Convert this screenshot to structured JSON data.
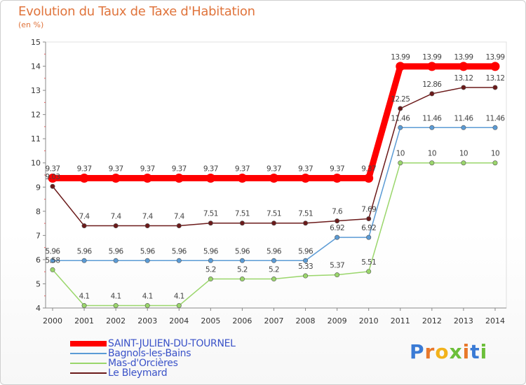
{
  "chart_data": {
    "type": "line",
    "title": "Evolution du Taux de Taxe d'Habitation",
    "ylabel": "(en %)",
    "xlabel": "",
    "x": [
      "2000",
      "2001",
      "2002",
      "2003",
      "2004",
      "2005",
      "2006",
      "2007",
      "2008",
      "2009",
      "2010",
      "2011",
      "2012",
      "2013",
      "2014"
    ],
    "ylim": [
      4,
      15
    ],
    "yticks": [
      "4",
      "5",
      "6",
      "7",
      "8",
      "9",
      "10",
      "11",
      "12",
      "13",
      "14",
      "15"
    ],
    "grid": false,
    "legend": "bottom-left",
    "series": [
      {
        "name": "SAINT-JULIEN-DU-TOURNEL",
        "color": "#ff0000",
        "values": [
          9.37,
          9.37,
          9.37,
          9.37,
          9.37,
          9.37,
          9.37,
          9.37,
          9.37,
          9.37,
          9.37,
          13.99,
          13.99,
          13.99,
          13.99
        ],
        "labels": [
          "9.37",
          "9.37",
          "9.37",
          "9.37",
          "9.37",
          "9.37",
          "9.37",
          "9.37",
          "9.37",
          "9.37",
          "9.37",
          "13.99",
          "13.99",
          "13.99",
          "13.99"
        ]
      },
      {
        "name": "Bagnols-les-Bains",
        "color": "#5b9bd5",
        "values": [
          5.96,
          5.96,
          5.96,
          5.96,
          5.96,
          5.96,
          5.96,
          5.96,
          5.96,
          6.92,
          6.92,
          11.46,
          11.46,
          11.46,
          11.46
        ],
        "labels": [
          "5.96",
          "5.96",
          "5.96",
          "5.96",
          "5.96",
          "5.96",
          "5.96",
          "5.96",
          "5.96",
          "6.92",
          "6.92",
          "11.46",
          "11.46",
          "11.46",
          "11.46"
        ]
      },
      {
        "name": "Mas-d'Orcières",
        "color": "#9ad66b",
        "values": [
          5.58,
          4.1,
          4.1,
          4.1,
          4.1,
          5.2,
          5.2,
          5.2,
          5.33,
          5.37,
          5.51,
          10,
          10,
          10,
          10
        ],
        "labels": [
          "5.58",
          "4.1",
          "4.1",
          "4.1",
          "4.1",
          "5.2",
          "5.2",
          "5.2",
          "5.33",
          "5.37",
          "5.51",
          "10",
          "10",
          "10",
          "10"
        ]
      },
      {
        "name": "Le Bleymard",
        "color": "#6b1a1a",
        "values": [
          9.03,
          7.4,
          7.4,
          7.4,
          7.4,
          7.51,
          7.51,
          7.51,
          7.51,
          7.6,
          7.69,
          12.25,
          12.86,
          13.12,
          13.12
        ],
        "labels": [
          "9.03",
          "7.4",
          "7.4",
          "7.4",
          "7.4",
          "7.51",
          "7.51",
          "7.51",
          "7.51",
          "7.6",
          "7.69",
          "12.25",
          "12.86",
          "13.12",
          "13.12"
        ]
      }
    ]
  },
  "brand": {
    "letters": [
      "P",
      "r",
      "o",
      "x",
      "i",
      "t",
      "i"
    ],
    "colors": [
      "#3a7bd5",
      "#e8782a",
      "#f2b21b",
      "#6cbf3a",
      "#e8782a",
      "#3a7bd5",
      "#6cbf3a"
    ]
  }
}
